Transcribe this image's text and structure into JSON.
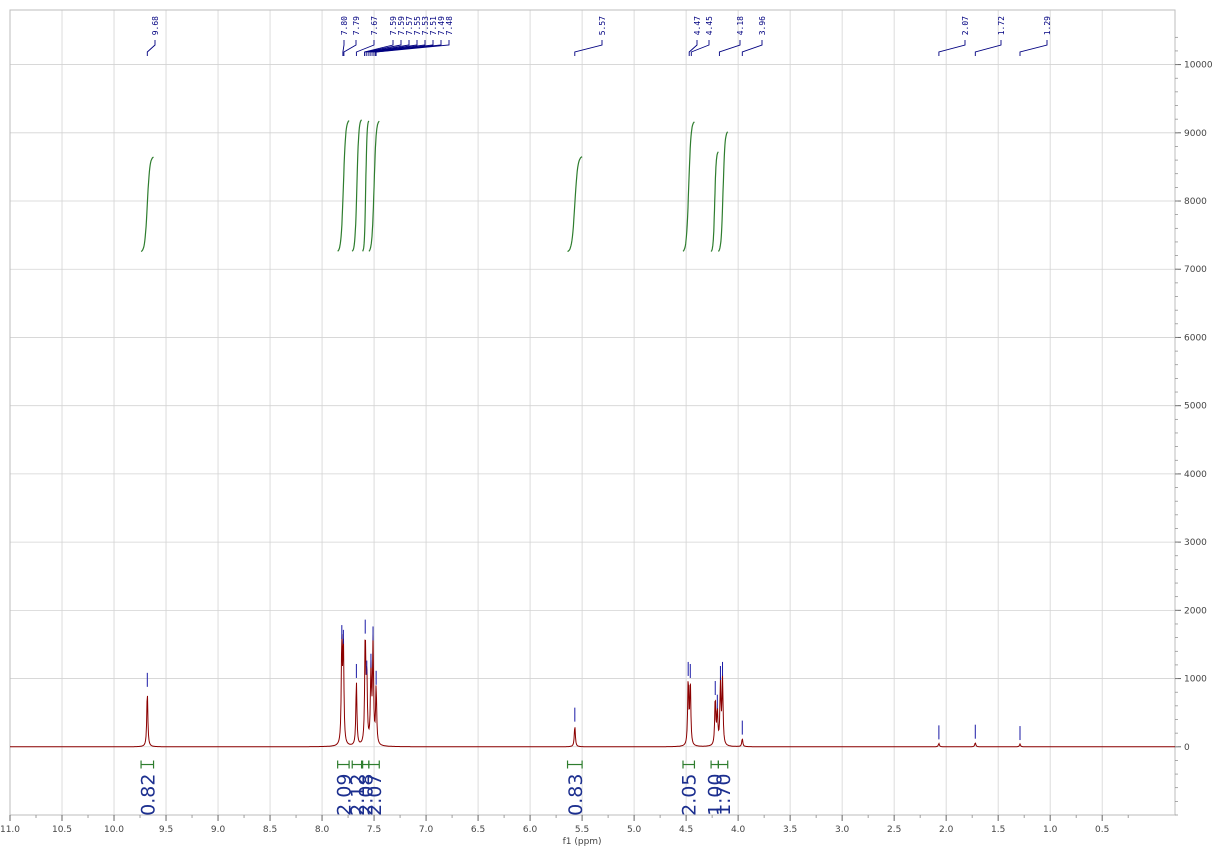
{
  "colors": {
    "spectrum": "#8b0000",
    "integral": "#2e7d2e",
    "peak_marker": "#1a1aa6",
    "grid": "#d3d3d3",
    "integral_label": "#1c2f8f"
  },
  "chart_data": {
    "type": "line",
    "x_axis": {
      "label": "f1 (ppm)",
      "range": [
        11.0,
        -0.2
      ],
      "reversed": true,
      "ticks": [
        "11.0",
        "10.5",
        "10.0",
        "9.5",
        "9.0",
        "8.5",
        "8.0",
        "7.5",
        "7.0",
        "6.5",
        "6.0",
        "5.5",
        "5.0",
        "4.5",
        "4.0",
        "3.5",
        "3.0",
        "2.5",
        "2.0",
        "1.5",
        "1.0",
        "0.5"
      ]
    },
    "y_axis": {
      "position": "right",
      "range": [
        -1000,
        10800
      ],
      "ticks": [
        "10000",
        "9000",
        "8000",
        "7000",
        "6000",
        "5000",
        "4000",
        "3000",
        "2000",
        "1000",
        "0"
      ]
    },
    "grid": true,
    "peak_labels": [
      "9.68",
      "7.80",
      "7.79",
      "7.67",
      "7.59",
      "7.59",
      "7.57",
      "7.55",
      "7.53",
      "7.51",
      "7.49",
      "7.48",
      "5.57",
      "4.47",
      "4.45",
      "4.18",
      "3.96",
      "2.07",
      "1.72",
      "1.29"
    ],
    "peaks": [
      {
        "ppm": 9.68,
        "height": 820
      },
      {
        "ppm": 7.81,
        "height": 1520
      },
      {
        "ppm": 7.795,
        "height": 1450
      },
      {
        "ppm": 7.67,
        "height": 950
      },
      {
        "ppm": 7.585,
        "height": 1600
      },
      {
        "ppm": 7.57,
        "height": 1000
      },
      {
        "ppm": 7.53,
        "height": 1100
      },
      {
        "ppm": 7.51,
        "height": 1500
      },
      {
        "ppm": 7.48,
        "height": 850
      },
      {
        "ppm": 5.57,
        "height": 310
      },
      {
        "ppm": 4.48,
        "height": 980
      },
      {
        "ppm": 4.46,
        "height": 950
      },
      {
        "ppm": 4.22,
        "height": 700
      },
      {
        "ppm": 4.2,
        "height": 500
      },
      {
        "ppm": 4.17,
        "height": 920
      },
      {
        "ppm": 4.15,
        "height": 980
      },
      {
        "ppm": 3.96,
        "height": 120
      },
      {
        "ppm": 2.07,
        "height": 50
      },
      {
        "ppm": 1.72,
        "height": 60
      },
      {
        "ppm": 1.29,
        "height": 40
      }
    ],
    "integrals": [
      {
        "from": 9.74,
        "to": 9.62,
        "value": "0.82"
      },
      {
        "from": 7.85,
        "to": 7.74,
        "value": "2.09"
      },
      {
        "from": 7.71,
        "to": 7.62,
        "value": "2.12"
      },
      {
        "from": 7.61,
        "to": 7.55,
        "value": "2.08"
      },
      {
        "from": 7.55,
        "to": 7.45,
        "value": "2.07"
      },
      {
        "from": 5.64,
        "to": 5.5,
        "value": "0.83"
      },
      {
        "from": 4.53,
        "to": 4.42,
        "value": "2.05"
      },
      {
        "from": 4.26,
        "to": 4.19,
        "value": "1.00"
      },
      {
        "from": 4.19,
        "to": 4.1,
        "value": "1.70"
      }
    ]
  }
}
